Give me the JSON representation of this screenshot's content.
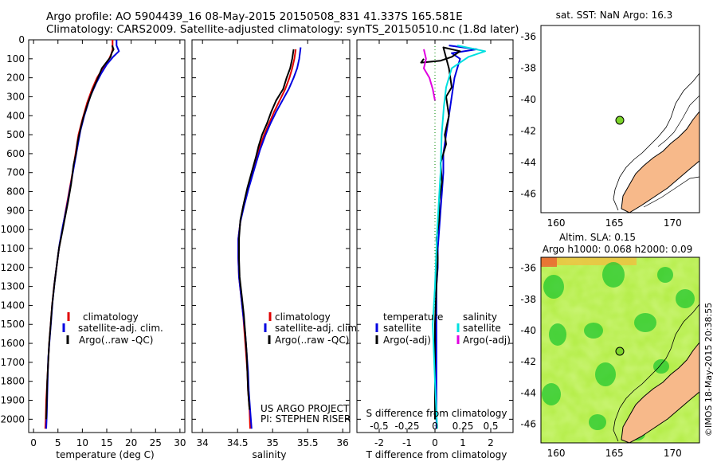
{
  "header": {
    "line1": "Argo profile: AO 5904439_16 08-May-2015 20150508_831 41.337S 165.581E",
    "line2": "Climatology: CARS2009. Satellite-adjusted climatology: synTS_20150510.nc (1.8d later)"
  },
  "colors": {
    "climatology": "#e00000",
    "satellite": "#0000e0",
    "argo": "#000000",
    "sal_satellite": "#00e0e0",
    "sal_argo": "#e000e0",
    "land": "#f7b98a",
    "float": "#7cd42a"
  },
  "credit": "©IMOS 18-May-2015 20:38:55",
  "chart_data": [
    {
      "type": "line",
      "id": "temperature",
      "xlabel": "temperature (deg C)",
      "ylabel": "",
      "xlim": [
        -1,
        31
      ],
      "ylim": [
        2070,
        0
      ],
      "xticks": [
        0,
        5,
        10,
        15,
        20,
        25,
        30
      ],
      "yticks": [
        0,
        100,
        200,
        300,
        400,
        500,
        600,
        700,
        800,
        900,
        1000,
        1100,
        1200,
        1300,
        1400,
        1500,
        1600,
        1700,
        1800,
        1900,
        2000
      ],
      "legend": [
        "climatology",
        "satellite-adj. clim.",
        "Argo(..raw -QC)"
      ],
      "series": [
        {
          "name": "climatology",
          "color": "#e00000",
          "points": [
            [
              16.2,
              0
            ],
            [
              16.2,
              50
            ],
            [
              16.0,
              70
            ],
            [
              15.5,
              100
            ],
            [
              14.2,
              150
            ],
            [
              13.0,
              200
            ],
            [
              12.0,
              260
            ],
            [
              11.0,
              330
            ],
            [
              10.0,
              420
            ],
            [
              9.2,
              500
            ],
            [
              8.6,
              600
            ],
            [
              8.0,
              700
            ],
            [
              7.3,
              800
            ],
            [
              6.6,
              900
            ],
            [
              5.9,
              1000
            ],
            [
              5.2,
              1100
            ],
            [
              4.7,
              1200
            ],
            [
              4.2,
              1300
            ],
            [
              3.8,
              1400
            ],
            [
              3.5,
              1500
            ],
            [
              3.2,
              1600
            ],
            [
              3.0,
              1700
            ],
            [
              2.8,
              1800
            ],
            [
              2.6,
              1900
            ],
            [
              2.5,
              2000
            ],
            [
              2.4,
              2050
            ]
          ]
        },
        {
          "name": "satellite-adj. clim.",
          "color": "#0000e0",
          "points": [
            [
              17.0,
              0
            ],
            [
              17.0,
              30
            ],
            [
              17.5,
              60
            ],
            [
              16.3,
              90
            ],
            [
              15.0,
              130
            ],
            [
              13.8,
              180
            ],
            [
              12.8,
              230
            ],
            [
              11.6,
              300
            ],
            [
              10.4,
              400
            ],
            [
              9.6,
              480
            ],
            [
              8.9,
              580
            ],
            [
              8.2,
              680
            ],
            [
              7.5,
              780
            ],
            [
              6.8,
              880
            ],
            [
              6.0,
              980
            ],
            [
              5.3,
              1080
            ],
            [
              4.8,
              1180
            ],
            [
              4.3,
              1280
            ],
            [
              3.9,
              1380
            ],
            [
              3.6,
              1480
            ],
            [
              3.3,
              1580
            ],
            [
              3.0,
              1680
            ],
            [
              2.9,
              1780
            ],
            [
              2.8,
              1880
            ],
            [
              2.7,
              1980
            ],
            [
              2.6,
              2050
            ]
          ]
        },
        {
          "name": "Argo(..raw -QC)",
          "color": "#000000",
          "points": [
            [
              16.1,
              30
            ],
            [
              16.4,
              50
            ],
            [
              16.0,
              70
            ],
            [
              15.8,
              90
            ],
            [
              14.0,
              150
            ],
            [
              13.2,
              200
            ],
            [
              12.2,
              260
            ],
            [
              11.2,
              330
            ],
            [
              10.3,
              400
            ],
            [
              9.7,
              460
            ],
            [
              9.0,
              540
            ],
            [
              8.7,
              600
            ],
            [
              8.2,
              660
            ],
            [
              7.7,
              760
            ],
            [
              7.1,
              850
            ],
            [
              6.5,
              930
            ],
            [
              5.9,
              1010
            ],
            [
              5.2,
              1100
            ],
            [
              4.8,
              1180
            ],
            [
              4.3,
              1280
            ],
            [
              3.8,
              1400
            ],
            [
              3.5,
              1500
            ],
            [
              3.2,
              1600
            ],
            [
              3.0,
              1700
            ],
            [
              2.8,
              1800
            ],
            [
              2.7,
              1900
            ],
            [
              2.6,
              2000
            ]
          ]
        }
      ]
    },
    {
      "type": "line",
      "id": "salinity",
      "xlabel": "salinity",
      "xlim": [
        33.85,
        36.1
      ],
      "ylim": [
        2070,
        0
      ],
      "xticks": [
        34,
        34.5,
        35,
        35.5,
        36
      ],
      "legend": [
        "climatology",
        "satellite-adj. clim.",
        "Argo(..raw -QC)"
      ],
      "annotation": [
        "US ARGO PROJECT",
        "PI: STEPHEN RISER"
      ],
      "series": [
        {
          "name": "climatology",
          "color": "#e00000",
          "points": [
            [
              35.33,
              50
            ],
            [
              35.31,
              100
            ],
            [
              35.28,
              150
            ],
            [
              35.24,
              200
            ],
            [
              35.18,
              260
            ],
            [
              35.1,
              320
            ],
            [
              35.02,
              380
            ],
            [
              34.95,
              440
            ],
            [
              34.88,
              500
            ],
            [
              34.8,
              580
            ],
            [
              34.72,
              680
            ],
            [
              34.65,
              780
            ],
            [
              34.58,
              880
            ],
            [
              34.54,
              960
            ],
            [
              34.51,
              1050
            ],
            [
              34.51,
              1150
            ],
            [
              34.52,
              1250
            ],
            [
              34.55,
              1350
            ],
            [
              34.58,
              1450
            ],
            [
              34.6,
              1550
            ],
            [
              34.62,
              1650
            ],
            [
              34.64,
              1750
            ],
            [
              34.65,
              1850
            ],
            [
              34.67,
              1950
            ],
            [
              34.68,
              2050
            ]
          ]
        },
        {
          "name": "satellite-adj. clim.",
          "color": "#0000e0",
          "points": [
            [
              35.4,
              40
            ],
            [
              35.38,
              100
            ],
            [
              35.35,
              150
            ],
            [
              35.3,
              200
            ],
            [
              35.23,
              260
            ],
            [
              35.14,
              320
            ],
            [
              35.05,
              380
            ],
            [
              34.97,
              440
            ],
            [
              34.9,
              500
            ],
            [
              34.82,
              580
            ],
            [
              34.74,
              680
            ],
            [
              34.66,
              780
            ],
            [
              34.59,
              880
            ],
            [
              34.54,
              960
            ],
            [
              34.51,
              1050
            ],
            [
              34.51,
              1150
            ],
            [
              34.52,
              1250
            ],
            [
              34.55,
              1350
            ],
            [
              34.58,
              1450
            ],
            [
              34.61,
              1550
            ],
            [
              34.63,
              1650
            ],
            [
              34.65,
              1750
            ],
            [
              34.66,
              1850
            ],
            [
              34.68,
              1950
            ],
            [
              34.7,
              2050
            ]
          ]
        },
        {
          "name": "Argo(..raw -QC)",
          "color": "#000000",
          "points": [
            [
              35.3,
              50
            ],
            [
              35.28,
              100
            ],
            [
              35.25,
              150
            ],
            [
              35.2,
              200
            ],
            [
              35.15,
              260
            ],
            [
              35.05,
              320
            ],
            [
              34.98,
              380
            ],
            [
              34.92,
              440
            ],
            [
              34.85,
              500
            ],
            [
              34.8,
              560
            ],
            [
              34.76,
              620
            ],
            [
              34.7,
              700
            ],
            [
              34.64,
              780
            ],
            [
              34.59,
              860
            ],
            [
              34.54,
              950
            ],
            [
              34.52,
              1050
            ],
            [
              34.52,
              1150
            ],
            [
              34.53,
              1250
            ],
            [
              34.56,
              1350
            ],
            [
              34.59,
              1450
            ],
            [
              34.61,
              1550
            ],
            [
              34.63,
              1650
            ],
            [
              34.64,
              1750
            ],
            [
              34.65,
              1850
            ],
            [
              34.67,
              1950
            ]
          ]
        }
      ]
    },
    {
      "type": "line",
      "id": "difference",
      "xlabel": "T difference from climatology",
      "xlabel_top": "S difference from climatology",
      "xlim": [
        -2.8,
        2.8
      ],
      "ylim": [
        2070,
        0
      ],
      "xticks": [
        -2,
        -1,
        0,
        1,
        2
      ],
      "xticks_s": [
        "-0.5",
        "-0.25",
        "0",
        "0.25",
        "0.5"
      ],
      "legend_titles": [
        "temperature",
        "salinity"
      ],
      "legend": [
        "satellite",
        "Argo(-adj)",
        "satellite",
        "Argo(-adj)"
      ],
      "series": [
        {
          "name": "temperature satellite",
          "color": "#0000e0",
          "points": [
            [
              0.5,
              30
            ],
            [
              1.5,
              50
            ],
            [
              0.6,
              70
            ],
            [
              0.9,
              100
            ],
            [
              0.8,
              150
            ],
            [
              0.7,
              200
            ],
            [
              0.6,
              300
            ],
            [
              0.5,
              400
            ],
            [
              0.4,
              500
            ],
            [
              0.3,
              600
            ],
            [
              0.3,
              700
            ],
            [
              0.25,
              800
            ],
            [
              0.2,
              900
            ],
            [
              0.15,
              1000
            ],
            [
              0.1,
              1100
            ],
            [
              0.1,
              1200
            ],
            [
              0.05,
              1300
            ],
            [
              0.05,
              1400
            ],
            [
              0.05,
              1500
            ],
            [
              0.05,
              1700
            ],
            [
              0.05,
              1900
            ],
            [
              0.05,
              2050
            ]
          ]
        },
        {
          "name": "temperature Argo(-adj)",
          "color": "#000000",
          "points": [
            [
              -0.4,
              100
            ],
            [
              -0.5,
              120
            ],
            [
              0.2,
              110
            ],
            [
              0.6,
              90
            ],
            [
              0.9,
              60
            ],
            [
              0.3,
              40
            ],
            [
              0.5,
              150
            ],
            [
              0.6,
              250
            ],
            [
              0.4,
              300
            ],
            [
              0.5,
              400
            ],
            [
              0.35,
              500
            ],
            [
              0.4,
              550
            ],
            [
              0.2,
              650
            ],
            [
              0.25,
              750
            ],
            [
              0.15,
              850
            ],
            [
              0.15,
              950
            ],
            [
              0.05,
              1050
            ],
            [
              0.1,
              1150
            ],
            [
              0.05,
              1300
            ],
            [
              0.0,
              1500
            ],
            [
              0.0,
              1700
            ],
            [
              0.0,
              2000
            ]
          ]
        },
        {
          "name": "salinity satellite",
          "color": "#00e0e0",
          "points": [
            [
              0.2,
              30
            ],
            [
              0.45,
              60
            ],
            [
              0.3,
              90
            ],
            [
              0.15,
              150
            ],
            [
              0.1,
              250
            ],
            [
              0.08,
              350
            ],
            [
              0.06,
              500
            ],
            [
              0.05,
              700
            ],
            [
              0.02,
              1000
            ],
            [
              0.0,
              1300
            ],
            [
              -0.02,
              1500
            ],
            [
              0.0,
              1800
            ],
            [
              0.02,
              2050
            ]
          ]
        },
        {
          "name": "salinity Argo(-adj)",
          "color": "#e000e0",
          "points": [
            [
              -0.1,
              50
            ],
            [
              -0.08,
              100
            ],
            [
              -0.1,
              150
            ],
            [
              -0.05,
              200
            ],
            [
              -0.02,
              260
            ],
            [
              0.0,
              320
            ]
          ]
        }
      ]
    },
    {
      "type": "map",
      "id": "sst-map",
      "title": "sat. SST: NaN Argo: 16.3",
      "xticks": [
        160,
        165,
        170
      ],
      "yticks": [
        -36,
        -38,
        -40,
        -42,
        -44,
        -46
      ],
      "float_position": [
        165.581,
        -41.337
      ]
    },
    {
      "type": "map",
      "id": "sla-map",
      "title": "Altim. SLA: 0.15",
      "subtitle": "Argo h1000: 0.068 h2000: 0.09",
      "xticks": [
        160,
        165,
        170
      ],
      "yticks": [
        -36,
        -38,
        -40,
        -42,
        -44,
        -46
      ],
      "float_position": [
        165.581,
        -41.337
      ]
    }
  ]
}
